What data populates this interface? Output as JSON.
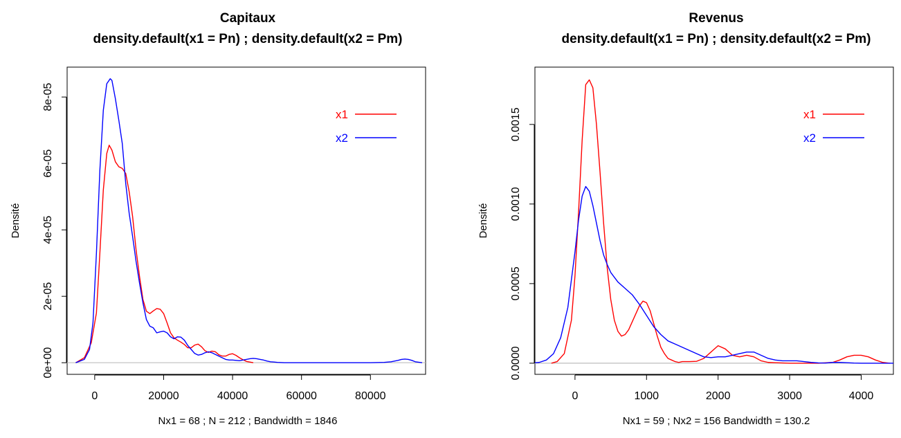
{
  "chart_data": [
    {
      "type": "line",
      "title": "Capitaux",
      "subtitle": "density.default(x1 = Pn) ; density.default(x2 = Pm)",
      "xlabel": "Nx1 = 68 ; N = 212 ; Bandwidth = 1846",
      "ylabel": "Densité",
      "xlim": [
        -8000,
        96000
      ],
      "ylim": [
        -3.5e-06,
        8.9e-05
      ],
      "xticks": [
        0,
        20000,
        40000,
        60000,
        80000
      ],
      "xtick_labels": [
        "0",
        "20000",
        "40000",
        "60000",
        "80000"
      ],
      "yticks": [
        0,
        2e-05,
        4e-05,
        6e-05,
        8e-05
      ],
      "ytick_labels": [
        "0e+00",
        "2e-05",
        "4e-05",
        "6e-05",
        "8e-05"
      ],
      "legend": {
        "position": "top-right",
        "entries": [
          "x1",
          "x2"
        ]
      },
      "series": [
        {
          "name": "x1",
          "color": "#ff0000",
          "x": [
            -5500,
            -3000,
            -1000,
            500,
            1500,
            2500,
            3500,
            4200,
            5000,
            6000,
            7000,
            8000,
            9000,
            10000,
            11000,
            12000,
            13000,
            14000,
            15000,
            16000,
            17000,
            18000,
            19000,
            20000,
            21000,
            22000,
            23000,
            24000,
            25000,
            26000,
            27000,
            28000,
            29000,
            30000,
            31000,
            32000,
            33000,
            34000,
            35000,
            36000,
            37000,
            38000,
            39000,
            40000,
            41000,
            42000,
            43000,
            44000,
            45000,
            46000
          ],
          "y": [
            0,
            1.5e-06,
            6e-06,
            1.5e-05,
            3.3e-05,
            5.2e-05,
            6.3e-05,
            6.55e-05,
            6.4e-05,
            6.05e-05,
            5.9e-05,
            5.85e-05,
            5.7e-05,
            5.15e-05,
            4.4e-05,
            3.4e-05,
            2.6e-05,
            1.9e-05,
            1.55e-05,
            1.48e-05,
            1.56e-05,
            1.63e-05,
            1.61e-05,
            1.48e-05,
            1.2e-05,
            9e-06,
            7.5e-06,
            6.8e-06,
            6.2e-06,
            5.5e-06,
            4.5e-06,
            4.5e-06,
            5.3e-06,
            5.6e-06,
            4.8e-06,
            3.6e-06,
            3.1e-06,
            3.5e-06,
            3.3e-06,
            2.4e-06,
            2e-06,
            2e-06,
            2.5e-06,
            2.7e-06,
            2.2e-06,
            1.5e-06,
            9e-07,
            4e-07,
            2e-07,
            0
          ]
        },
        {
          "name": "x2",
          "color": "#0000ff",
          "x": [
            -5500,
            -3000,
            -1500,
            -500,
            500,
            1500,
            2500,
            3500,
            4500,
            5000,
            6000,
            7000,
            8000,
            9000,
            10000,
            11000,
            12000,
            13000,
            14000,
            15000,
            16000,
            17000,
            18000,
            19000,
            20000,
            21000,
            22000,
            23000,
            24000,
            25000,
            26000,
            27000,
            28000,
            29000,
            30000,
            31000,
            32000,
            33000,
            34000,
            35000,
            36000,
            37000,
            38000,
            39000,
            40000,
            41000,
            42000,
            43000,
            44000,
            45000,
            46000,
            47000,
            48000,
            49000,
            50000,
            51000,
            52000,
            53000,
            55000,
            60000,
            70000,
            80000,
            84000,
            86000,
            88000,
            89000,
            90000,
            91000,
            92000,
            93000,
            95000
          ],
          "y": [
            0,
            1e-06,
            4e-06,
            1.2e-05,
            3.3e-05,
            5.8e-05,
            7.6e-05,
            8.4e-05,
            8.55e-05,
            8.5e-05,
            7.95e-05,
            7.3e-05,
            6.6e-05,
            5.4e-05,
            4.5e-05,
            3.8e-05,
            3.05e-05,
            2.4e-05,
            1.8e-05,
            1.3e-05,
            1.1e-05,
            1.05e-05,
            9e-06,
            9.3e-06,
            9.5e-06,
            9e-06,
            7.8e-06,
            7.2e-06,
            7.8e-06,
            7.7e-06,
            6.8e-06,
            5.2e-06,
            4e-06,
            2.8e-06,
            2.3e-06,
            2.5e-06,
            3e-06,
            3.3e-06,
            3e-06,
            2.5e-06,
            2e-06,
            1.5e-06,
            1e-06,
            8e-07,
            8e-07,
            7e-07,
            6e-07,
            8e-07,
            1e-06,
            1.2e-06,
            1.3e-06,
            1.2e-06,
            1e-06,
            8e-07,
            5e-07,
            3e-07,
            2e-07,
            1e-07,
            0,
            0,
            0,
            0,
            1e-07,
            3e-07,
            7e-07,
            1e-06,
            1.1e-06,
            1e-06,
            7e-07,
            3e-07,
            0
          ]
        }
      ]
    },
    {
      "type": "line",
      "title": "Revenus",
      "subtitle": "density.default(x1 = Pn) ; density.default(x2 = Pm)",
      "xlabel": "Nx1 = 59 ; Nx2 = 156  Bandwidth = 130.2",
      "ylabel": "Densité",
      "xlim": [
        -560,
        4450
      ],
      "ylim": [
        -7e-05,
        0.00186
      ],
      "xticks": [
        0,
        1000,
        2000,
        3000,
        4000
      ],
      "xtick_labels": [
        "0",
        "1000",
        "2000",
        "3000",
        "4000"
      ],
      "yticks": [
        0,
        0.0005,
        0.001,
        0.0015
      ],
      "ytick_labels": [
        "0.0000",
        "0.0005",
        "0.0010",
        "0.0015"
      ],
      "legend": {
        "position": "top-right",
        "entries": [
          "x1",
          "x2"
        ]
      },
      "series": [
        {
          "name": "x1",
          "color": "#ff0000",
          "x": [
            -330,
            -250,
            -150,
            -50,
            0,
            50,
            100,
            150,
            200,
            250,
            300,
            350,
            400,
            450,
            500,
            550,
            600,
            650,
            700,
            750,
            800,
            850,
            900,
            950,
            1000,
            1050,
            1100,
            1150,
            1200,
            1250,
            1300,
            1350,
            1400,
            1450,
            1500,
            1600,
            1700,
            1800,
            1900,
            2000,
            2100,
            2200,
            2300,
            2400,
            2500,
            2600,
            2700,
            2800,
            3000,
            3200,
            3400,
            3600,
            3700,
            3800,
            3900,
            4000,
            4100,
            4200,
            4300,
            4400
          ],
          "y": [
            0,
            1e-05,
            6e-05,
            0.00027,
            0.00055,
            0.00095,
            0.0014,
            0.00175,
            0.00178,
            0.00173,
            0.0015,
            0.0012,
            0.00088,
            0.0006,
            0.0004,
            0.00027,
            0.0002,
            0.00017,
            0.00018,
            0.00021,
            0.00026,
            0.00031,
            0.00036,
            0.00039,
            0.00038,
            0.00033,
            0.00025,
            0.00017,
            0.0001,
            6e-05,
            3e-05,
            2e-05,
            1e-05,
            5e-06,
            1e-05,
            1e-05,
            1.2e-05,
            3e-05,
            7e-05,
            0.00011,
            9e-05,
            5e-05,
            4e-05,
            5e-05,
            4e-05,
            1.5e-05,
            5e-06,
            3e-06,
            0,
            0,
            0,
            5e-06,
            2e-05,
            4e-05,
            5e-05,
            5e-05,
            4e-05,
            2e-05,
            5e-06,
            0
          ]
        },
        {
          "name": "x2",
          "color": "#0000ff",
          "x": [
            -560,
            -500,
            -400,
            -300,
            -200,
            -100,
            0,
            50,
            100,
            150,
            200,
            250,
            300,
            350,
            400,
            450,
            500,
            600,
            700,
            800,
            900,
            1000,
            1100,
            1200,
            1300,
            1400,
            1500,
            1600,
            1700,
            1800,
            1900,
            2000,
            2100,
            2200,
            2300,
            2400,
            2500,
            2600,
            2700,
            2800,
            2900,
            3000,
            3100,
            3200,
            3300,
            3400,
            3500,
            3600,
            3700,
            3800,
            3900,
            4000,
            4300,
            4450
          ],
          "y": [
            3e-06,
            5e-06,
            2e-05,
            6e-05,
            0.00016,
            0.00035,
            0.0007,
            0.0009,
            0.00105,
            0.00111,
            0.00108,
            0.00099,
            0.00088,
            0.00077,
            0.00068,
            0.00062,
            0.00057,
            0.00051,
            0.00047,
            0.00043,
            0.00037,
            0.0003,
            0.00023,
            0.00018,
            0.00014,
            0.00012,
            0.0001,
            8e-05,
            6e-05,
            4e-05,
            3.5e-05,
            4e-05,
            4e-05,
            5e-05,
            6e-05,
            7e-05,
            7e-05,
            5e-05,
            3e-05,
            2e-05,
            1.5e-05,
            1.5e-05,
            1.5e-05,
            1e-05,
            5e-06,
            2e-06,
            1e-06,
            5e-06,
            5e-06,
            3e-06,
            1e-06,
            0,
            0,
            0
          ]
        }
      ]
    }
  ]
}
